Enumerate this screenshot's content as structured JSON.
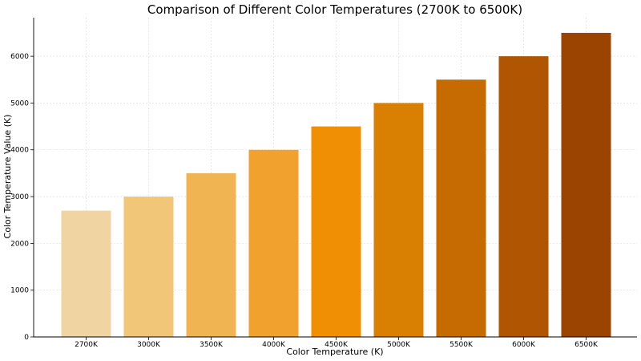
{
  "chart_data": {
    "type": "bar",
    "title": "Comparison of Different Color Temperatures (2700K to 6500K)",
    "xlabel": "Color Temperature (K)",
    "ylabel": "Color Temperature Value (K)",
    "categories": [
      "2700K",
      "3000K",
      "3500K",
      "4000K",
      "4500K",
      "5000K",
      "5500K",
      "6000K",
      "6500K"
    ],
    "values": [
      2700,
      3000,
      3500,
      4000,
      4500,
      5000,
      5500,
      6000,
      6500
    ],
    "colors": [
      "#f0d5a2",
      "#f1c678",
      "#f0b552",
      "#f1a12d",
      "#f18f04",
      "#d98002",
      "#c56b01",
      "#b05501",
      "#9b4301"
    ],
    "ylim": [
      0,
      6825
    ],
    "yticks": [
      0,
      1000,
      2000,
      3000,
      4000,
      5000,
      6000
    ],
    "grid": true
  }
}
